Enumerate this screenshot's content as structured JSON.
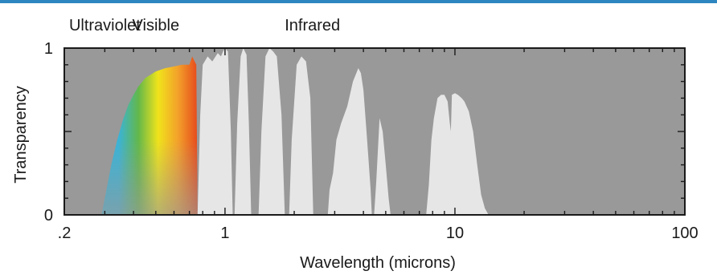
{
  "chart_data": {
    "type": "area",
    "title": "",
    "xlabel": "Wavelength (microns)",
    "ylabel": "Transparency",
    "x_scale": "log",
    "xlim": [
      0.2,
      100
    ],
    "ylim": [
      0,
      1
    ],
    "x_tick_labels": [
      {
        "value": 0.2,
        "label": ".2"
      },
      {
        "value": 1,
        "label": "1"
      },
      {
        "value": 10,
        "label": "10"
      },
      {
        "value": 100,
        "label": "100"
      }
    ],
    "y_tick_labels": [
      {
        "value": 1,
        "label": "1"
      },
      {
        "value": 0,
        "label": "0"
      }
    ],
    "region_labels": [
      {
        "name": "Ultraviolet",
        "x": 0.3
      },
      {
        "name": "Visible",
        "x": 0.5
      },
      {
        "name": "Infrared",
        "x": 2.4
      }
    ],
    "grid": false,
    "colors": {
      "plot_background": "#999999",
      "transmission_fill": "#e6e6e6",
      "visible_spectrum": [
        "#3bb3d6",
        "#63b84a",
        "#f0e31b",
        "#f3a12a",
        "#e64a1c"
      ]
    },
    "series": [
      {
        "x": [
          0.29,
          0.3,
          0.32,
          0.34,
          0.36,
          0.38,
          0.4,
          0.42,
          0.45,
          0.5,
          0.55,
          0.6,
          0.65,
          0.7,
          0.72,
          0.75,
          0.76
        ],
        "y": [
          0,
          0.1,
          0.3,
          0.45,
          0.57,
          0.66,
          0.72,
          0.77,
          0.82,
          0.86,
          0.88,
          0.89,
          0.9,
          0.9,
          0.95,
          0.9,
          0
        ]
      },
      {
        "x": [
          0.76,
          0.78,
          0.8,
          0.84,
          0.88,
          0.9,
          0.93,
          0.96,
          0.98,
          1.0,
          1.03,
          1.06,
          1.08
        ],
        "y": [
          0,
          0.6,
          0.9,
          0.95,
          0.92,
          0.94,
          0.97,
          0.95,
          0.98,
          1.0,
          0.98,
          0.5,
          0
        ]
      },
      {
        "x": [
          1.1,
          1.13,
          1.17,
          1.2,
          1.24,
          1.27,
          1.3
        ],
        "y": [
          0,
          0.55,
          0.95,
          1.0,
          0.96,
          0.55,
          0
        ]
      },
      {
        "x": [
          1.4,
          1.44,
          1.5,
          1.56,
          1.62,
          1.68,
          1.76,
          1.82
        ],
        "y": [
          0,
          0.5,
          0.95,
          1.0,
          0.98,
          0.95,
          0.6,
          0
        ]
      },
      {
        "x": [
          1.9,
          1.95,
          2.05,
          2.15,
          2.25,
          2.35,
          2.42
        ],
        "y": [
          0,
          0.45,
          0.9,
          0.95,
          0.92,
          0.7,
          0
        ]
      },
      {
        "x": [
          2.8,
          2.85,
          2.95,
          3.05,
          3.2,
          3.4,
          3.6,
          3.8,
          3.9,
          4.0,
          4.1,
          4.2,
          4.3,
          4.35
        ],
        "y": [
          0,
          0.15,
          0.25,
          0.45,
          0.55,
          0.65,
          0.8,
          0.88,
          0.85,
          0.75,
          0.55,
          0.35,
          0.15,
          0
        ]
      },
      {
        "x": [
          4.45,
          4.55,
          4.7,
          4.85,
          5.0,
          5.15,
          5.25
        ],
        "y": [
          0,
          0.2,
          0.58,
          0.5,
          0.3,
          0.1,
          0
        ]
      },
      {
        "x": [
          7.5,
          7.7,
          7.9,
          8.1,
          8.4,
          8.7,
          9.0,
          9.3,
          9.5,
          9.6,
          9.7,
          10.0,
          10.3,
          10.7,
          11.0,
          11.5,
          12.0,
          12.5,
          13.0,
          13.5,
          14.0
        ],
        "y": [
          0,
          0.18,
          0.45,
          0.58,
          0.7,
          0.72,
          0.72,
          0.68,
          0.55,
          0.5,
          0.72,
          0.73,
          0.72,
          0.7,
          0.68,
          0.62,
          0.5,
          0.3,
          0.12,
          0.04,
          0
        ]
      }
    ]
  }
}
